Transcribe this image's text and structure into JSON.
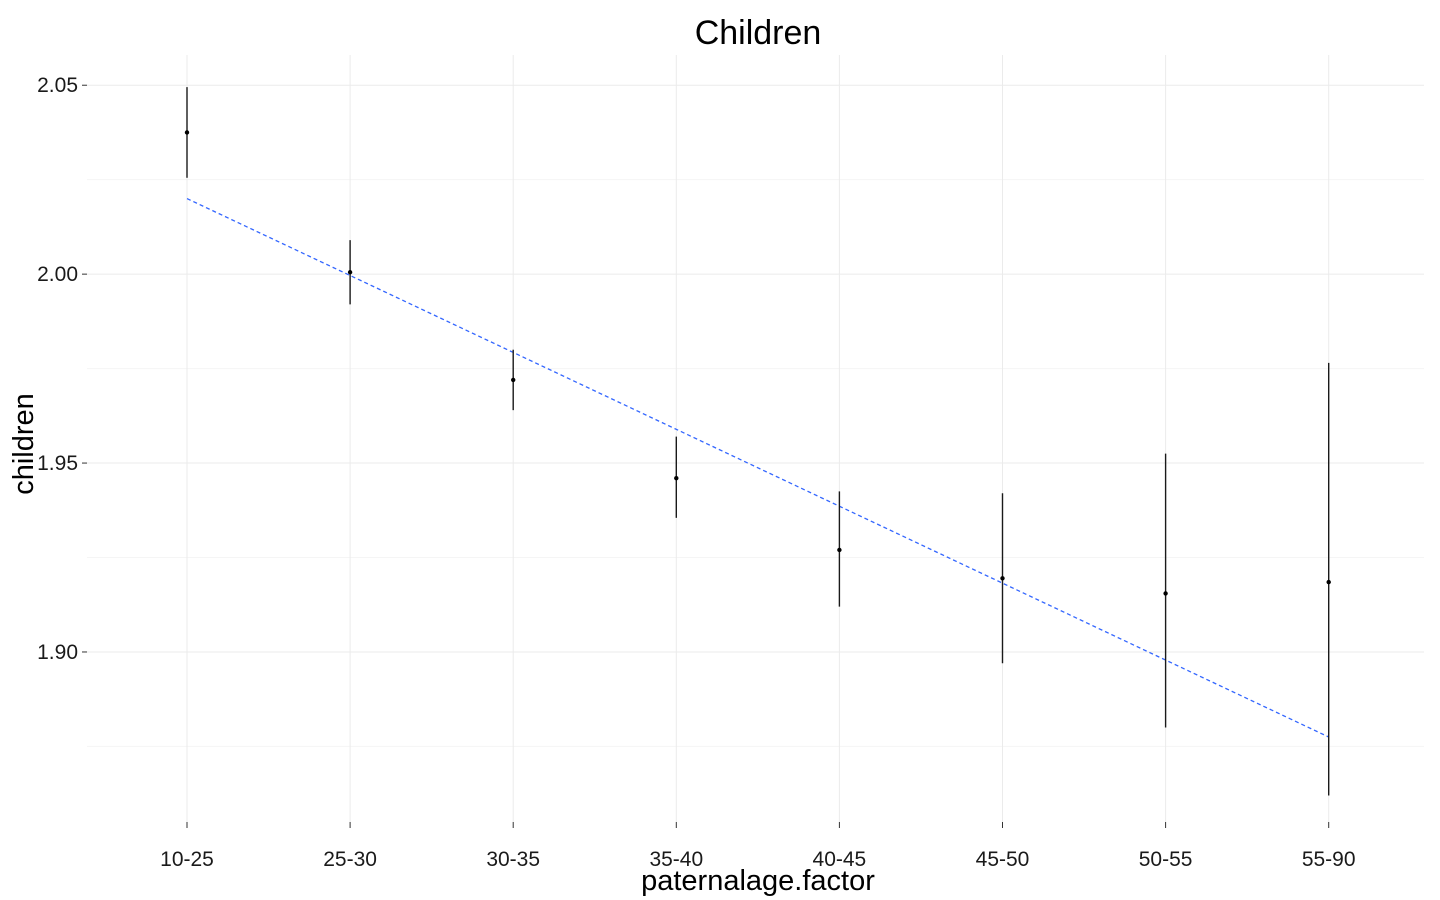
{
  "chart_data": {
    "type": "scatter",
    "title": "Children",
    "xlabel": "paternalage.factor",
    "ylabel": "children",
    "categories": [
      "10-25",
      "25-30",
      "30-35",
      "35-40",
      "40-45",
      "45-50",
      "50-55",
      "55-90"
    ],
    "series": [
      {
        "values": [
          2.0375,
          2.0005,
          1.972,
          1.946,
          1.927,
          1.9195,
          1.9155,
          1.9185
        ],
        "lower": [
          2.0255,
          1.992,
          1.964,
          1.9355,
          1.912,
          1.897,
          1.88,
          1.862
        ],
        "upper": [
          2.0495,
          2.009,
          1.98,
          1.957,
          1.9425,
          1.942,
          1.9525,
          1.9765
        ]
      }
    ],
    "trend_line": {
      "start": 2.02,
      "end": 1.8775,
      "color": "#3366ff",
      "style": "dashed"
    },
    "y_ticks": [
      1.9,
      1.95,
      2.0,
      2.05
    ],
    "y_tick_labels": [
      "1.90",
      "1.95",
      "2.00",
      "2.05"
    ],
    "ylim": [
      1.855,
      2.058
    ],
    "grid": true,
    "legend": "none"
  }
}
